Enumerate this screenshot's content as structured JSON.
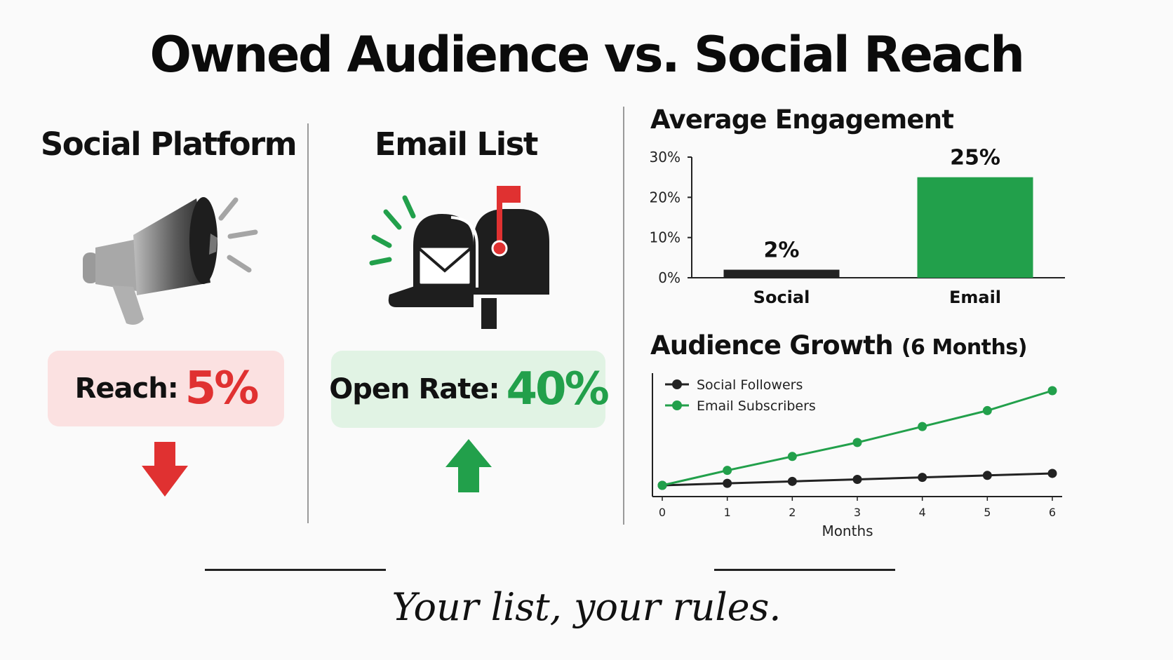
{
  "title": "Owned Audience vs. Social Reach",
  "left_panel": {
    "heading": "Social Platform",
    "icon": "megaphone-icon",
    "stat_label": "Reach:",
    "stat_value": "5%",
    "trend_icon": "arrow-down-icon",
    "accent": "#e03131",
    "box_bg": "#fbe1e1"
  },
  "middle_panel": {
    "heading": "Email List",
    "icon": "mailbox-icon",
    "stat_label": "Open Rate:",
    "stat_value": "40%",
    "trend_icon": "arrow-up-icon",
    "accent": "#22a04b",
    "box_bg": "#e1f3e4"
  },
  "engagement_chart": {
    "title": "Average Engagement"
  },
  "growth_chart": {
    "title_main": "Audience Growth",
    "title_sub": "(6 Months)"
  },
  "tagline": "Your list, your rules.",
  "colors": {
    "social": "#222222",
    "email": "#22a04b",
    "down": "#e03131",
    "up": "#22a04b"
  },
  "chart_data": [
    {
      "type": "bar",
      "title": "Average Engagement",
      "categories": [
        "Social",
        "Email"
      ],
      "values": [
        2,
        25
      ],
      "value_labels": [
        "2%",
        "25%"
      ],
      "y_ticks": [
        "0%",
        "10%",
        "20%",
        "30%"
      ],
      "ylim": [
        0,
        30
      ],
      "unit": "%",
      "colors": [
        "#222222",
        "#22a04b"
      ],
      "grid": false
    },
    {
      "type": "line",
      "title": "Audience Growth (6 Months)",
      "xlabel": "Months",
      "ylabel": "",
      "x": [
        0,
        1,
        2,
        3,
        4,
        5,
        6
      ],
      "ylim": [
        0,
        100
      ],
      "series": [
        {
          "name": "Social Followers",
          "color": "#222222",
          "values": [
            10,
            12,
            14,
            16,
            18,
            20,
            22
          ]
        },
        {
          "name": "Email Subscribers",
          "color": "#22a04b",
          "values": [
            10,
            25,
            39,
            53,
            69,
            85,
            105
          ]
        }
      ],
      "legend": "top-left",
      "grid": false
    }
  ]
}
